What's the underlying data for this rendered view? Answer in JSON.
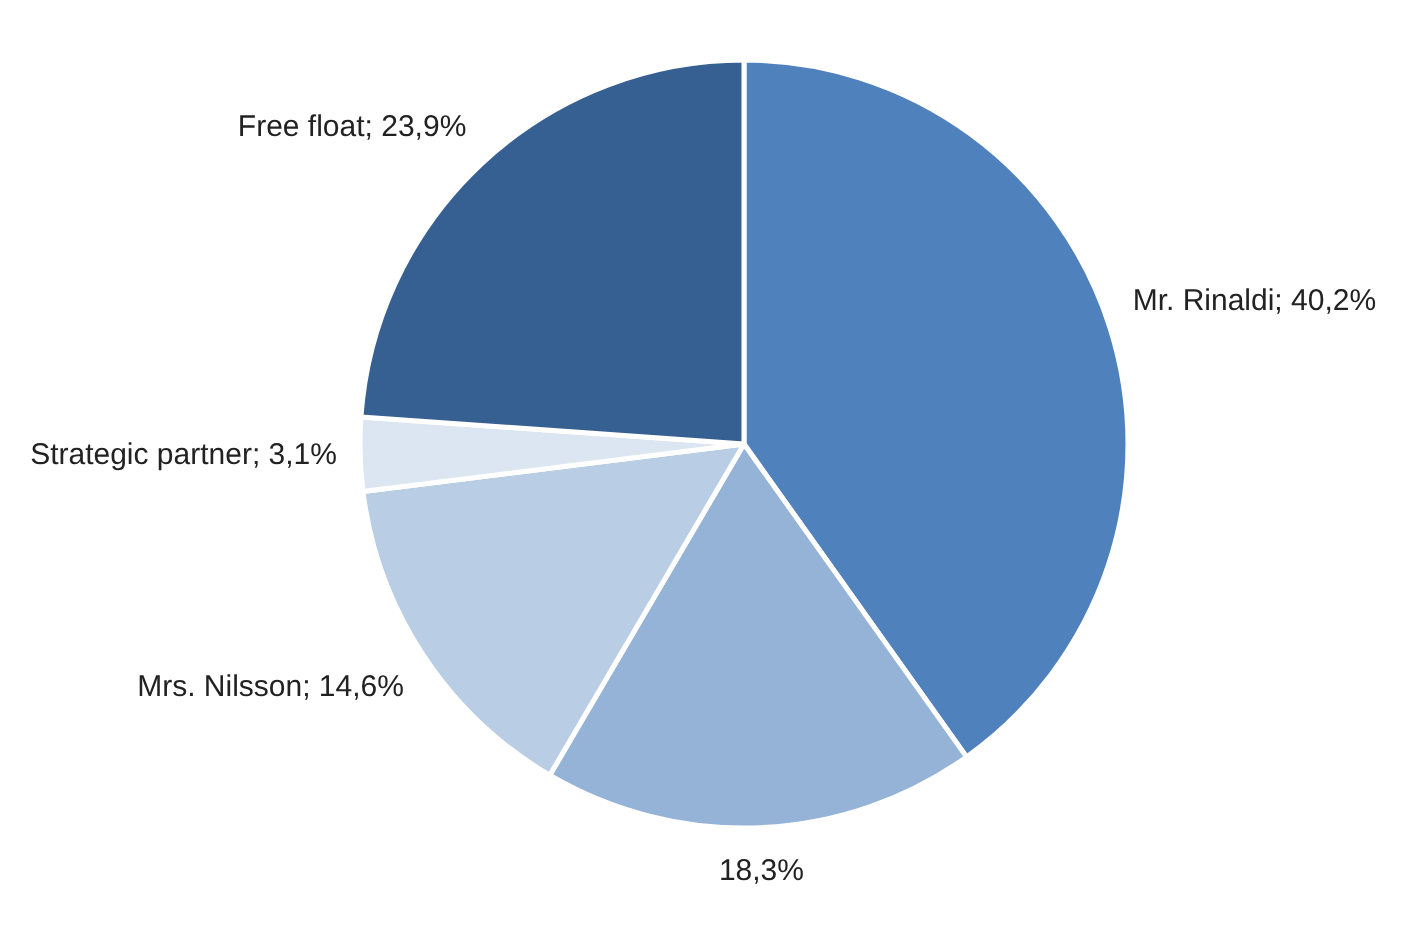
{
  "chart_data": {
    "type": "pie",
    "categories": [
      "Mr. Rinaldi",
      null,
      "Mrs. Nilsson",
      "Strategic partner",
      "Free float"
    ],
    "values": [
      40.2,
      18.3,
      14.6,
      3.1,
      23.9
    ],
    "value_labels": [
      "40,2%",
      "18,3%",
      "14,6%",
      "3,1%",
      "23,9%"
    ],
    "colors": [
      "#4f81bd",
      "#95b3d7",
      "#b9cde5",
      "#dce6f2",
      "#376092"
    ],
    "legend": false
  }
}
